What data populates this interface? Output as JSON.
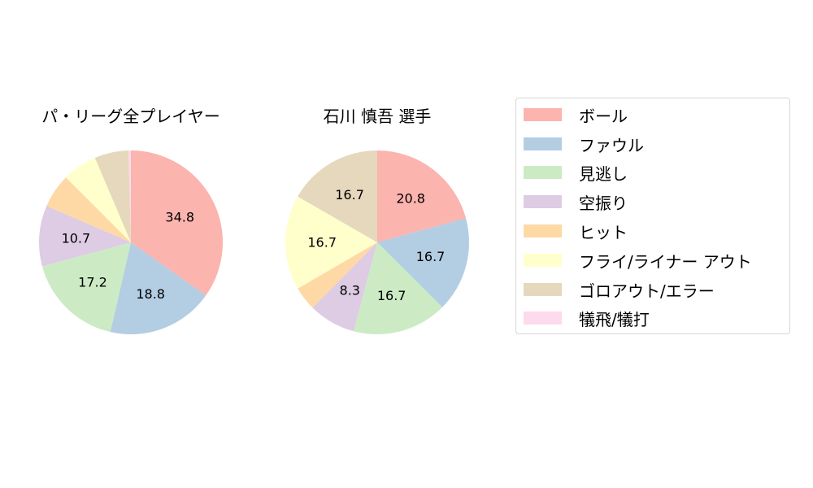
{
  "chart_data": [
    {
      "type": "pie",
      "title": "パ・リーグ全プレイヤー",
      "categories": [
        "ボール",
        "ファウル",
        "見逃し",
        "空振り",
        "ヒット",
        "フライ/ライナー アウト",
        "ゴロアウト/エラー",
        "犠飛/犠打"
      ],
      "values": [
        34.8,
        18.8,
        17.2,
        10.7,
        6.0,
        6.1,
        6.0,
        0.4
      ],
      "labels_shown": [
        "34.8",
        "18.8",
        "17.2",
        "10.7",
        "",
        "",
        "",
        ""
      ],
      "start_angle": 90,
      "direction": "clockwise"
    },
    {
      "type": "pie",
      "title": "石川 慎吾  選手",
      "categories": [
        "ボール",
        "ファウル",
        "見逃し",
        "空振り",
        "ヒット",
        "フライ/ライナー アウト",
        "ゴロアウト/エラー",
        "犠飛/犠打"
      ],
      "values": [
        20.8,
        16.7,
        16.7,
        8.3,
        4.2,
        16.7,
        16.7,
        0.0
      ],
      "labels_shown": [
        "20.8",
        "16.7",
        "16.7",
        "8.3",
        "",
        "16.7",
        "16.7",
        ""
      ],
      "start_angle": 90,
      "direction": "clockwise"
    }
  ],
  "legend": {
    "position": "right",
    "items": [
      {
        "label": "ボール",
        "color": "#fbb4ae"
      },
      {
        "label": "ファウル",
        "color": "#b3cde3"
      },
      {
        "label": "見逃し",
        "color": "#ccebc5"
      },
      {
        "label": "空振り",
        "color": "#decbe4"
      },
      {
        "label": "ヒット",
        "color": "#fed9a6"
      },
      {
        "label": "フライ/ライナー アウト",
        "color": "#ffffcc"
      },
      {
        "label": "ゴロアウト/エラー",
        "color": "#e5d8bd"
      },
      {
        "label": "犠飛/犠打",
        "color": "#fddaec"
      }
    ]
  },
  "titles": {
    "left": "パ・リーグ全プレイヤー",
    "right": "石川 慎吾  選手"
  }
}
